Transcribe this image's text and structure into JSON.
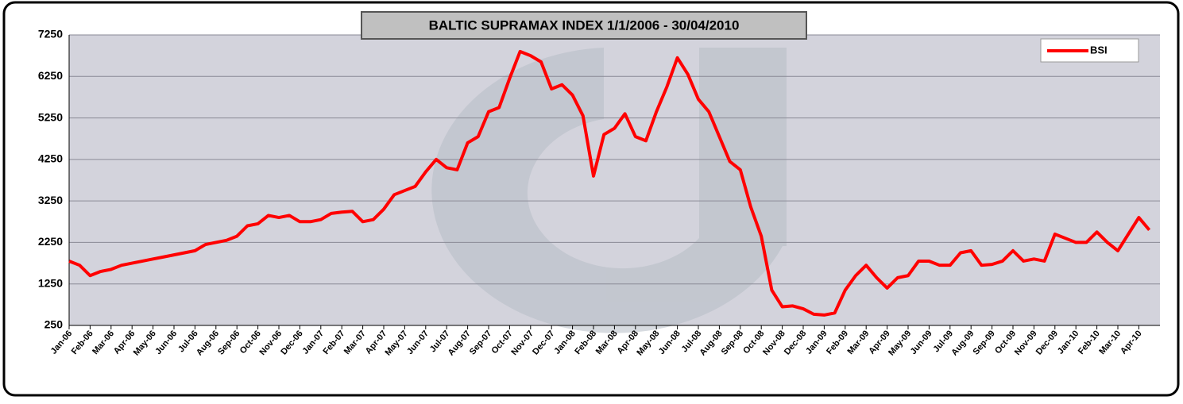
{
  "chart_data": {
    "type": "line",
    "title": "BALTIC SUPRAMAX INDEX 1/1/2006 - 30/04/2010",
    "categories": [
      "Jan-06",
      null,
      "Feb-06",
      null,
      "Mar-06",
      null,
      "Apr-06",
      null,
      "May-06",
      null,
      "Jun-06",
      null,
      "Jul-06",
      null,
      "Aug-06",
      null,
      "Sep-06",
      null,
      "Oct-06",
      null,
      "Nov-06",
      null,
      "Dec-06",
      null,
      "Jan-07",
      null,
      "Feb-07",
      null,
      "Mar-07",
      null,
      "Apr-07",
      null,
      "May-07",
      null,
      "Jun-07",
      null,
      "Jul-07",
      null,
      "Aug-07",
      null,
      "Sep-07",
      null,
      "Oct-07",
      null,
      "Nov-07",
      null,
      "Dec-07",
      null,
      "Jan-08",
      null,
      "Feb-08",
      null,
      "Mar-08",
      null,
      "Apr-08",
      null,
      "May-08",
      null,
      "Jun-08",
      null,
      "Jul-08",
      null,
      "Aug-08",
      null,
      "Sep-08",
      null,
      "Oct-08",
      null,
      "Nov-08",
      null,
      "Dec-08",
      null,
      "Jan-09",
      null,
      "Feb-09",
      null,
      "Mar-09",
      null,
      "Apr-09",
      null,
      "May-09",
      null,
      "Jun-09",
      null,
      "Jul-09",
      null,
      "Aug-09",
      null,
      "Sep-09",
      null,
      "Oct-09",
      null,
      "Nov-09",
      null,
      "Dec-09",
      null,
      "Jan-10",
      null,
      "Feb-10",
      null,
      "Mar-10",
      null,
      "Apr-10",
      null
    ],
    "series": [
      {
        "name": "BSI",
        "color": "#ff0000",
        "values": [
          1800,
          1700,
          1450,
          1550,
          1600,
          1700,
          1750,
          1800,
          1850,
          1900,
          1950,
          2000,
          2050,
          2200,
          2250,
          2300,
          2400,
          2650,
          2700,
          2900,
          2850,
          2900,
          2750,
          2750,
          2800,
          2950,
          2980,
          3000,
          2750,
          2800,
          3050,
          3400,
          3500,
          3600,
          3950,
          4250,
          4050,
          4000,
          4650,
          4800,
          5400,
          5500,
          6200,
          6850,
          6750,
          6600,
          5950,
          6050,
          5800,
          5300,
          3850,
          4850,
          5000,
          5350,
          4800,
          4700,
          5400,
          6000,
          6700,
          6300,
          5700,
          5400,
          4800,
          4200,
          4000,
          3100,
          2400,
          1100,
          700,
          720,
          650,
          520,
          500,
          550,
          1100,
          1450,
          1700,
          1400,
          1150,
          1400,
          1450,
          1800,
          1800,
          1700,
          1700,
          2000,
          2050,
          1700,
          1720,
          1800,
          2050,
          1800,
          1850,
          1800,
          2450,
          2350,
          2250,
          2250,
          2500,
          2250,
          2050,
          2450,
          2850,
          2550
        ]
      }
    ],
    "ylim": [
      250,
      7250
    ],
    "yticks": [
      250,
      1250,
      2250,
      3250,
      4250,
      5250,
      6250,
      7250
    ],
    "grid": true,
    "legend": "top-right"
  }
}
